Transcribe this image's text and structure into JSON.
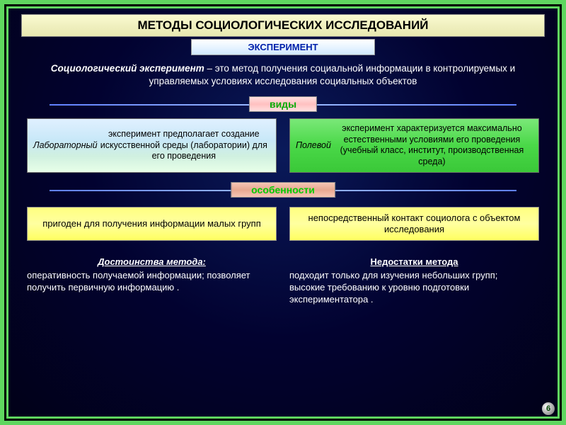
{
  "colors": {
    "outer_border": "#5fd65f",
    "background_dark": "#01013a",
    "title_bg": "#f0f0c0",
    "subtitle_text": "#0020aa",
    "divider_line": "#6080ff",
    "lab_bg_gradient": [
      "#e0f0ff",
      "#e8ffe8"
    ],
    "field_bg": "#4ad848",
    "feature_bg": "#ffff80",
    "label_types_bg": "#ffc0c0",
    "label_features_bg": "#e8a890",
    "label_text": "#00aa00"
  },
  "title": "МЕТОДЫ СОЦИОЛОГИЧЕСКИХ ИССЛЕДОВАНИЙ",
  "subtitle": "ЭКСПЕРИМЕНТ",
  "definition": {
    "term": "Социологический эксперимент",
    "text": " – это метод получения социальной информации в контролируемых и управляемых условиях исследования социальных объектов"
  },
  "section_types": {
    "label": "виды",
    "lab_html": "<em>Лабораторный</em> эксперимент предполагает создание искусственной среды (лаборатории) для его проведения",
    "field_html": "<em>Полевой</em> эксперимент характеризуется максимально естественными условиями его проведения (учебный класс, институт, производственная среда)"
  },
  "section_features": {
    "label": "особенности",
    "left": "пригоден для получения информации малых групп",
    "right": "непосредственный контакт социолога с объектом исследования"
  },
  "advantages": {
    "heading": "Достоинства метода:",
    "body": "оперативность получаемой информации; позволяет получить первичную информацию ."
  },
  "disadvantages": {
    "heading": "Недостатки метода",
    "body": "подходит только для изучения небольших групп;\nвысокие требованию к уровню подготовки экспериментатора ."
  },
  "page_number": "6"
}
